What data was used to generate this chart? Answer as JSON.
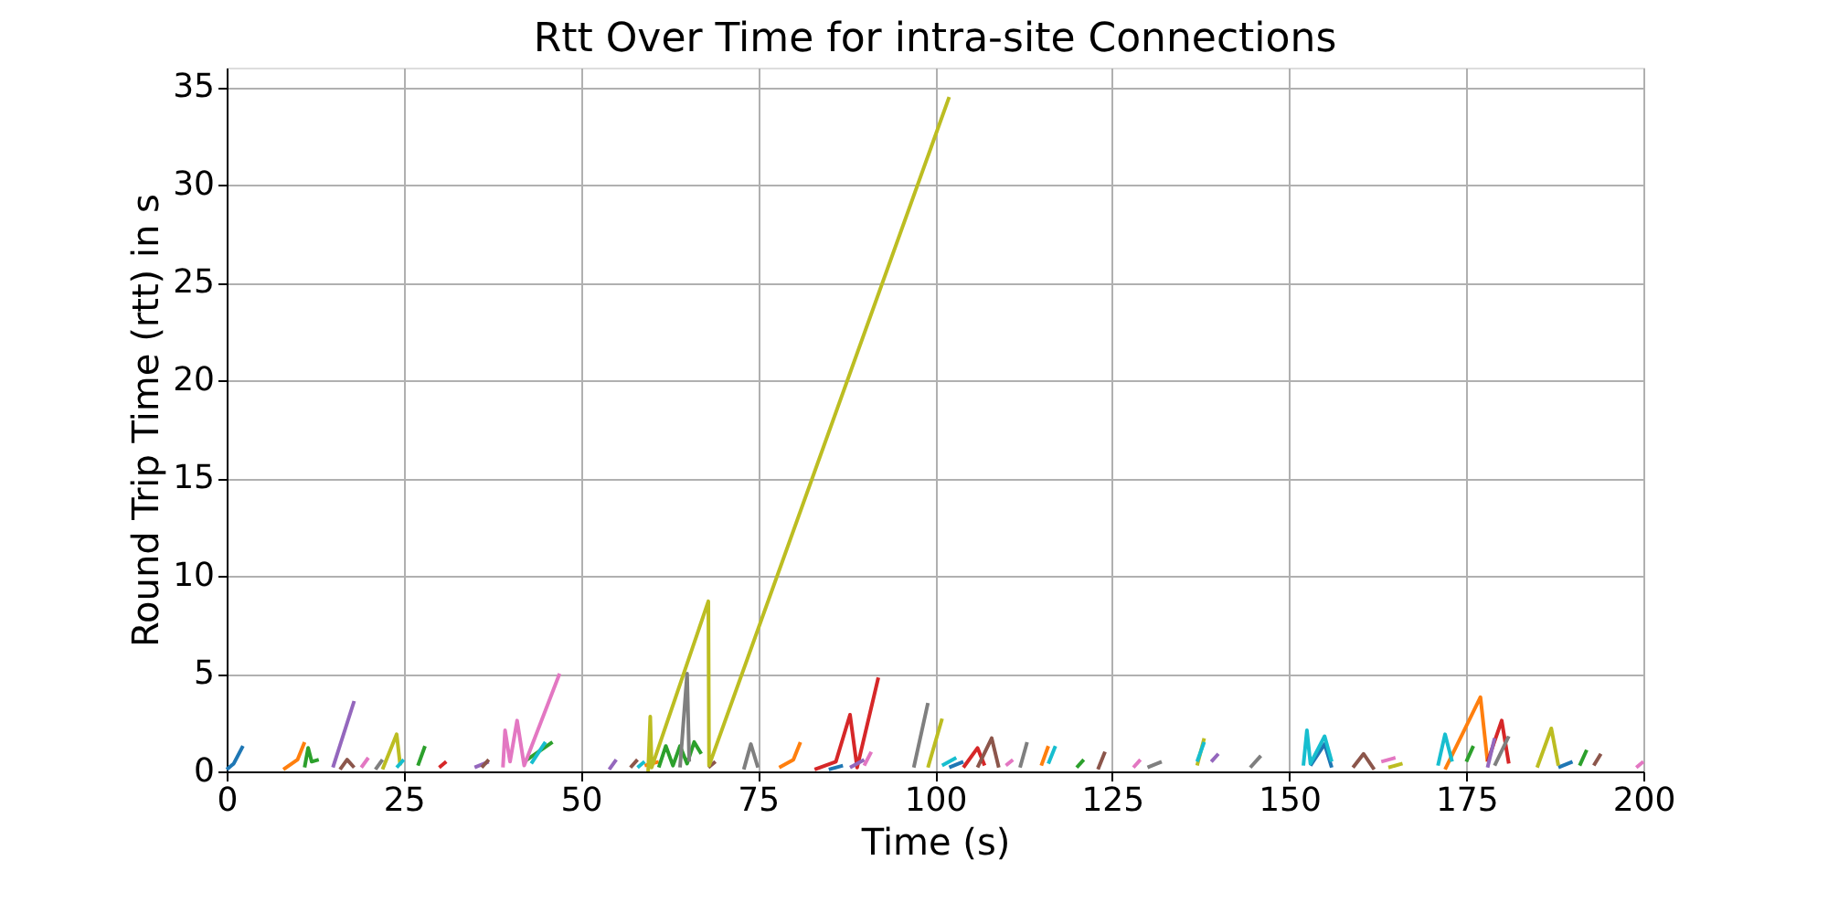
{
  "chart_data": {
    "type": "line",
    "title": "Rtt Over Time for intra-site Connections",
    "xlabel": "Time (s)",
    "ylabel": "Round Trip Time (rtt) in s",
    "xlim": [
      0,
      200
    ],
    "xticks": [
      0,
      25,
      50,
      75,
      100,
      125,
      150,
      175,
      200
    ],
    "ylim": [
      0,
      36
    ],
    "yticks": [
      0,
      5,
      10,
      15,
      20,
      25,
      30,
      35
    ],
    "grid": true,
    "legend": false,
    "line_style": "solid",
    "marker": "none",
    "series": [
      {
        "color": "#1f77b4",
        "x": [
          0,
          1,
          2.3,
          null,
          85,
          87,
          null,
          102,
          104,
          null,
          153,
          155,
          156,
          null,
          188,
          190
        ],
        "values": [
          0.1,
          0.4,
          1.3,
          null,
          0.1,
          0.3,
          null,
          0.2,
          0.5,
          null,
          0.3,
          1.4,
          0.2,
          null,
          0.2,
          0.5
        ]
      },
      {
        "color": "#ff7f0e",
        "x": [
          8,
          10,
          11,
          null,
          59,
          61,
          null,
          78,
          80,
          81,
          null,
          115,
          116,
          null,
          172,
          177,
          178
        ],
        "values": [
          0.1,
          0.6,
          1.5,
          null,
          0.3,
          0.5,
          null,
          0.2,
          0.6,
          1.5,
          null,
          0.3,
          1.3,
          null,
          0.1,
          3.8,
          0.5
        ]
      },
      {
        "color": "#2ca02c",
        "x": [
          11,
          11.5,
          12,
          13,
          null,
          27,
          28,
          null,
          42,
          46,
          null,
          61,
          62,
          63,
          64,
          65,
          66,
          67,
          null,
          120,
          121,
          null,
          175,
          176,
          null,
          191,
          192
        ],
        "values": [
          0.2,
          1.2,
          0.5,
          0.6,
          null,
          0.3,
          1.3,
          null,
          0.5,
          1.5,
          null,
          0.2,
          1.3,
          0.3,
          1.3,
          0.4,
          1.5,
          0.9,
          null,
          0.2,
          0.6,
          null,
          0.5,
          1.3,
          null,
          0.3,
          1.1
        ]
      },
      {
        "color": "#d62728",
        "x": [
          30,
          31,
          null,
          83,
          86,
          88,
          89,
          92,
          null,
          104,
          106,
          107,
          null,
          178,
          180,
          181
        ],
        "values": [
          0.2,
          0.5,
          null,
          0.1,
          0.5,
          2.9,
          0.2,
          4.8,
          null,
          0.2,
          1.2,
          0.3,
          null,
          0.5,
          2.6,
          0.4
        ]
      },
      {
        "color": "#9467bd",
        "x": [
          15,
          18,
          null,
          35,
          37,
          null,
          54,
          55,
          null,
          88,
          90,
          null,
          139,
          140,
          null,
          178,
          179
        ],
        "values": [
          0.2,
          3.6,
          null,
          0.2,
          0.5,
          null,
          0.1,
          0.6,
          null,
          0.2,
          0.6,
          null,
          0.5,
          0.9,
          null,
          0.2,
          1.7
        ]
      },
      {
        "color": "#8c564b",
        "x": [
          16,
          17,
          18,
          null,
          36,
          37,
          null,
          57,
          58,
          null,
          68,
          69,
          null,
          106,
          108,
          109,
          null,
          123,
          124,
          null,
          159,
          160.5,
          162,
          null,
          193,
          194
        ],
        "values": [
          0.1,
          0.6,
          0.2,
          null,
          0.2,
          0.6,
          null,
          0.2,
          0.6,
          null,
          0.2,
          0.5,
          null,
          0.2,
          1.7,
          0.2,
          null,
          0.1,
          1.0,
          null,
          0.2,
          0.9,
          0.1,
          null,
          0.3,
          0.9
        ]
      },
      {
        "color": "#e377c2",
        "x": [
          19,
          20,
          null,
          39,
          39.3,
          40,
          41,
          42,
          47,
          null,
          90,
          91,
          null,
          110,
          111,
          null,
          128,
          129,
          null,
          163,
          165,
          null,
          199,
          200
        ],
        "values": [
          0.2,
          0.7,
          null,
          0.2,
          2.1,
          0.5,
          2.6,
          0.3,
          5.0,
          null,
          0.3,
          1.0,
          null,
          0.3,
          0.6,
          null,
          0.2,
          0.6,
          null,
          0.5,
          0.7,
          null,
          0.2,
          0.5
        ]
      },
      {
        "color": "#7f7f7f",
        "x": [
          21,
          22,
          null,
          64,
          65,
          65.3,
          null,
          73,
          74,
          75,
          null,
          97,
          99,
          null,
          112,
          113,
          null,
          130,
          132,
          null,
          144.5,
          146,
          null,
          179,
          181
        ],
        "values": [
          0.1,
          0.6,
          null,
          0.2,
          5.0,
          0.5,
          null,
          0.1,
          1.4,
          0.2,
          null,
          0.2,
          3.5,
          null,
          0.2,
          1.5,
          null,
          0.2,
          0.5,
          null,
          0.2,
          0.8,
          null,
          0.3,
          1.8
        ]
      },
      {
        "color": "#bcbd22",
        "x": [
          22,
          24,
          24.5,
          null,
          59.5,
          59.8,
          60,
          68,
          68.1,
          102,
          null,
          99,
          101,
          null,
          137,
          138,
          null,
          164,
          166,
          null,
          185,
          187,
          188
        ],
        "values": [
          0.1,
          1.9,
          0.3,
          null,
          0,
          2.8,
          0.2,
          8.7,
          0.3,
          34.5,
          null,
          0.2,
          2.7,
          null,
          0.3,
          1.7,
          null,
          0.2,
          0.4,
          null,
          0.2,
          2.2,
          0.3
        ]
      },
      {
        "color": "#17becf",
        "x": [
          24,
          25,
          null,
          43,
          45,
          null,
          58,
          59,
          null,
          101,
          103,
          null,
          116,
          117,
          null,
          137,
          138,
          null,
          152,
          152.5,
          153,
          155,
          156,
          null,
          171,
          172,
          173
        ],
        "values": [
          0.2,
          0.6,
          null,
          0.4,
          1.5,
          null,
          0.2,
          0.5,
          null,
          0.3,
          0.7,
          null,
          0.4,
          1.3,
          null,
          0.5,
          1.5,
          null,
          0.3,
          2.1,
          0.4,
          1.8,
          0.5,
          null,
          0.3,
          1.9,
          0.5
        ]
      }
    ]
  }
}
